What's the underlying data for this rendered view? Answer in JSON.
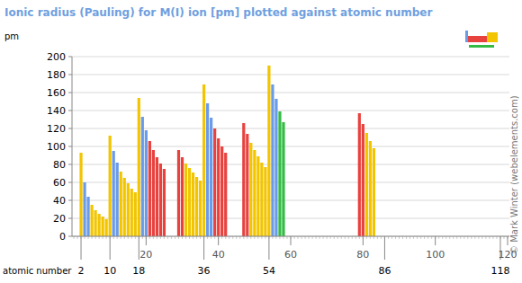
{
  "chart_data": {
    "type": "bar",
    "title": "Ionic radius (Pauling) for M(I) ion [pm] plotted against atomic number",
    "ylabel": "pm",
    "xlabel": "atomic number",
    "annotation": "© Mark Winter (webelements.com)",
    "x": [
      2,
      3,
      4,
      5,
      6,
      7,
      8,
      9,
      10,
      11,
      12,
      13,
      14,
      15,
      16,
      17,
      18,
      19,
      20,
      21,
      22,
      23,
      24,
      25,
      29,
      30,
      31,
      32,
      33,
      34,
      35,
      36,
      37,
      38,
      39,
      40,
      41,
      42,
      47,
      48,
      49,
      50,
      51,
      52,
      53,
      54,
      55,
      56,
      57,
      58,
      79,
      80,
      81,
      82,
      83
    ],
    "values": [
      93,
      60,
      44,
      35,
      29,
      25,
      22,
      19,
      112,
      95,
      82,
      72,
      65,
      59,
      53,
      49,
      154,
      133,
      118,
      106,
      96,
      88,
      81,
      75,
      96,
      88,
      81,
      76,
      71,
      66,
      62,
      169,
      148,
      132,
      120,
      109,
      100,
      93,
      126,
      114,
      104,
      96,
      89,
      82,
      77,
      190,
      169,
      153,
      139,
      127,
      137,
      125,
      115,
      106,
      98
    ],
    "colors": [
      "#f2c500",
      "#6a9be8",
      "#6a9be8",
      "#f2c500",
      "#f2c500",
      "#f2c500",
      "#f2c500",
      "#f2c500",
      "#f2c500",
      "#6a9be8",
      "#6a9be8",
      "#f2c500",
      "#f2c500",
      "#f2c500",
      "#f2c500",
      "#f2c500",
      "#f2c500",
      "#6a9be8",
      "#6a9be8",
      "#e8423f",
      "#e8423f",
      "#e8423f",
      "#e8423f",
      "#e8423f",
      "#e8423f",
      "#e8423f",
      "#f2c500",
      "#f2c500",
      "#f2c500",
      "#f2c500",
      "#f2c500",
      "#f2c500",
      "#6a9be8",
      "#6a9be8",
      "#e8423f",
      "#e8423f",
      "#e8423f",
      "#e8423f",
      "#e8423f",
      "#e8423f",
      "#f2c500",
      "#f2c500",
      "#f2c500",
      "#f2c500",
      "#f2c500",
      "#f2c500",
      "#6a9be8",
      "#6a9be8",
      "#33bb44",
      "#33bb44",
      "#e8423f",
      "#e8423f",
      "#f2c500",
      "#f2c500",
      "#f2c500"
    ],
    "xlim": [
      -0.5,
      120.5
    ],
    "xticks": [
      2,
      10,
      18,
      20,
      36,
      40,
      54,
      60,
      80,
      86,
      100,
      118,
      120
    ],
    "ylim": [
      0,
      200
    ],
    "yticks": [
      0,
      20,
      40,
      60,
      80,
      100,
      120,
      140,
      160,
      180,
      200
    ],
    "grid": true
  }
}
